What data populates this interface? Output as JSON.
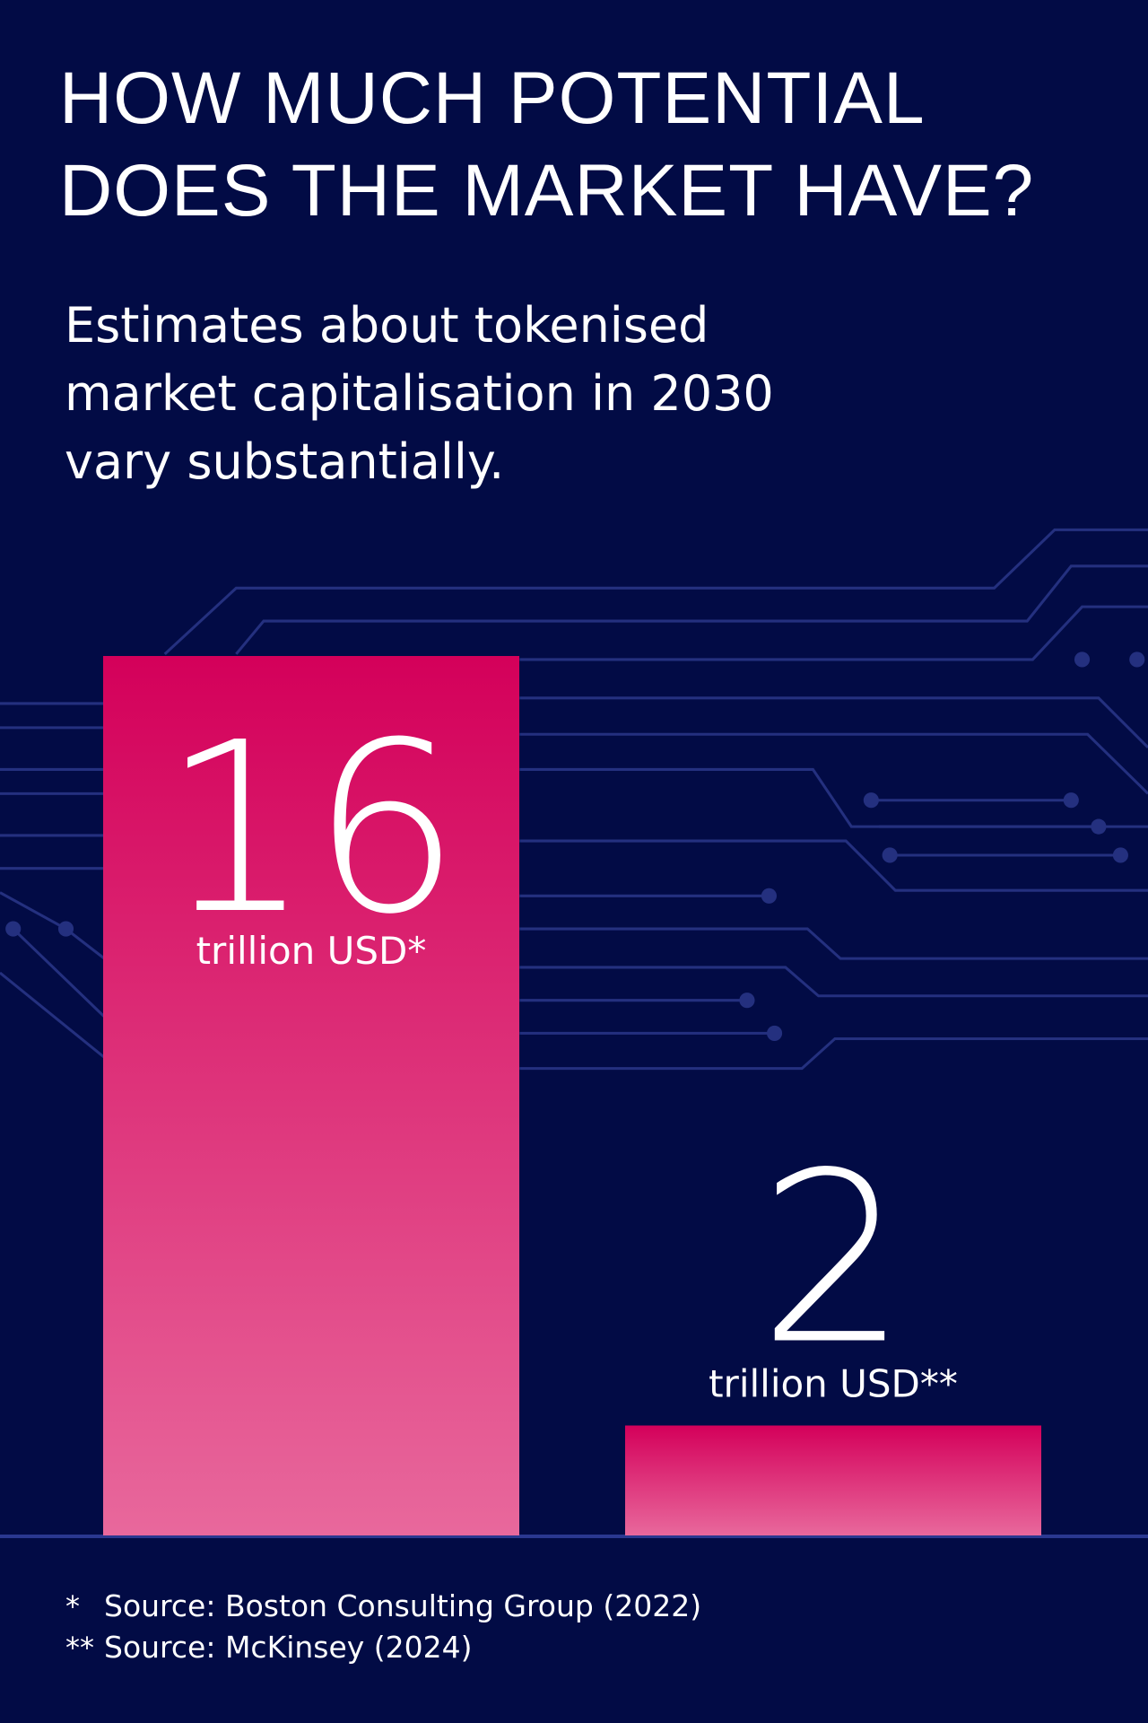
{
  "chart_data": {
    "type": "bar",
    "title": "HOW MUCH POTENTIAL DOES THE MARKET HAVE?",
    "subtitle": "Estimates about tokenised market capitalisation in 2030 vary substantially.",
    "values": [
      16,
      2
    ],
    "units": [
      "trillion USD*",
      "trillion USD**"
    ],
    "color": "#d4005a",
    "gradient_end": "#e8689c",
    "footnotes": [
      {
        "marker": "*",
        "text": "Source: Boston Consulting Group (2022)"
      },
      {
        "marker": "**",
        "text": "Source: McKinsey (2024)"
      }
    ]
  }
}
